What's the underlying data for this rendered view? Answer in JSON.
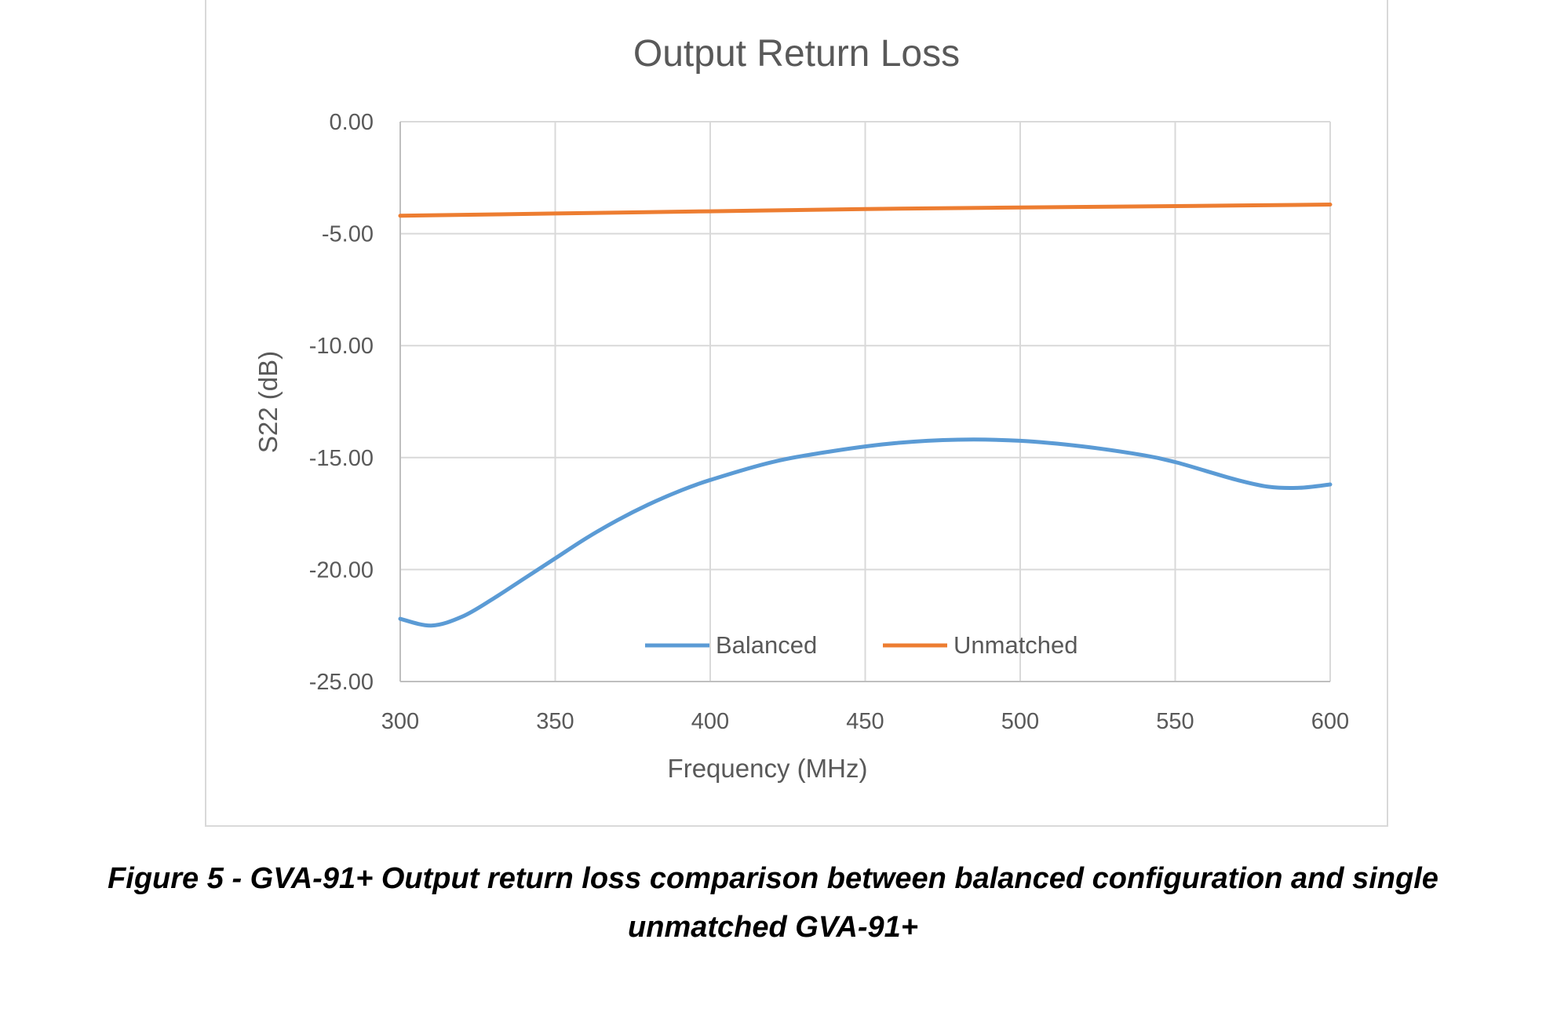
{
  "chart_data": {
    "type": "line",
    "title": "Output Return Loss",
    "xlabel": "Frequency (MHz)",
    "ylabel": "S22 (dB)",
    "xlim": [
      300,
      600
    ],
    "ylim": [
      -25,
      0
    ],
    "xticks": [
      "300",
      "350",
      "400",
      "450",
      "500",
      "550",
      "600"
    ],
    "yticks": [
      "0.00",
      "-5.00",
      "-10.00",
      "-15.00",
      "-20.00",
      "-25.00"
    ],
    "grid": true,
    "legend_position": "bottom-inside",
    "series": [
      {
        "name": "Balanced",
        "color": "#5b9bd5",
        "x": [
          300,
          310,
          320,
          330,
          340,
          350,
          360,
          370,
          380,
          390,
          400,
          420,
          440,
          460,
          480,
          500,
          520,
          540,
          550,
          560,
          570,
          580,
          590,
          600
        ],
        "y": [
          -22.2,
          -22.5,
          -22.1,
          -21.3,
          -20.4,
          -19.5,
          -18.6,
          -17.8,
          -17.1,
          -16.5,
          -16.0,
          -15.2,
          -14.7,
          -14.35,
          -14.2,
          -14.25,
          -14.5,
          -14.9,
          -15.2,
          -15.6,
          -16.0,
          -16.3,
          -16.35,
          -16.2
        ]
      },
      {
        "name": "Unmatched",
        "color": "#ed7d31",
        "x": [
          300,
          350,
          400,
          450,
          500,
          550,
          600
        ],
        "y": [
          -4.2,
          -4.1,
          -4.0,
          -3.9,
          -3.83,
          -3.77,
          -3.7
        ]
      }
    ]
  },
  "caption": {
    "line1": "Figure 5 - GVA-91+ Output return loss comparison between balanced configuration and single",
    "line2": "unmatched GVA-91+"
  }
}
